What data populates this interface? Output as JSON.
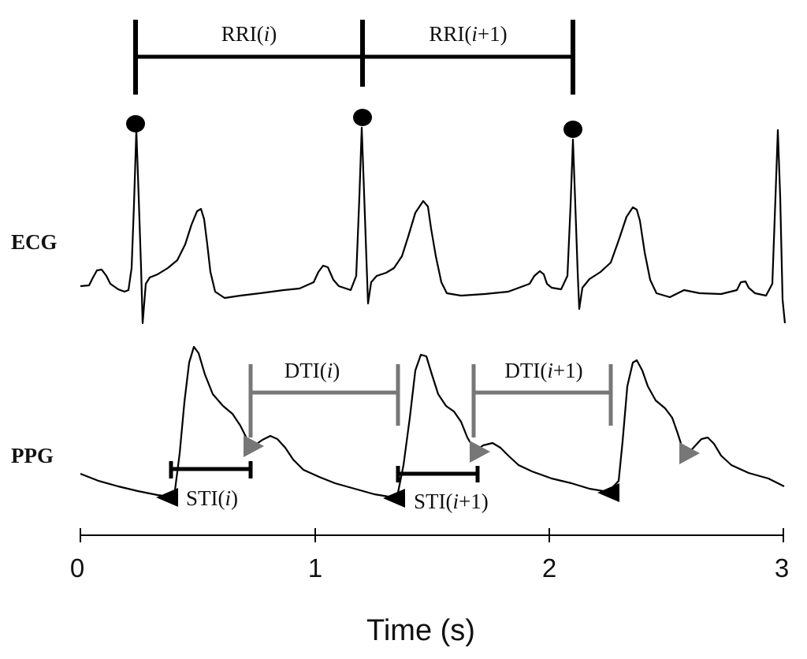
{
  "rows": {
    "ecg": "ECG",
    "ppg": "PPG"
  },
  "intervals": {
    "rri_i": {
      "prefix": "RRI(",
      "italic": "i",
      "suffix": ")"
    },
    "rri_i1": {
      "prefix": "RRI(",
      "italic": "i",
      "suffix": "+1)"
    },
    "dti_i": {
      "prefix": "DTI(",
      "italic": "i",
      "suffix": ")"
    },
    "dti_i1": {
      "prefix": "DTI(",
      "italic": "i",
      "suffix": "+1)"
    },
    "sti_i": {
      "prefix": "STI(",
      "italic": "i",
      "suffix": ")"
    },
    "sti_i1": {
      "prefix": "STI(",
      "italic": "i",
      "suffix": "+1)"
    }
  },
  "axis": {
    "label": "Time (s)",
    "ticks": [
      "0",
      "1",
      "2",
      "3"
    ]
  },
  "colors": {
    "line": "#000000",
    "grey_marker": "#777777"
  }
}
